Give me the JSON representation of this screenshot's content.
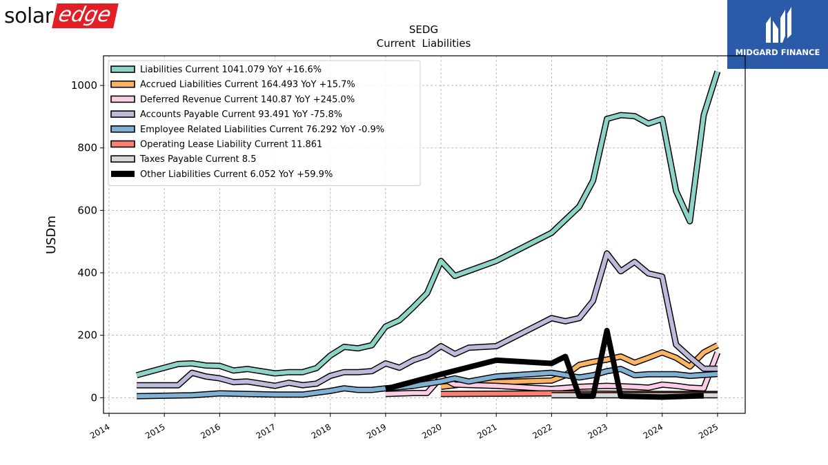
{
  "brand_left": {
    "solar": "solar",
    "edge": "edge",
    "accent": "#e21f26"
  },
  "brand_right": {
    "text": "MIDGARD FINANCE",
    "bg": "#2b5aa8"
  },
  "chart_data": {
    "type": "line",
    "title": "SEDG",
    "subtitle": "Current  Liabilities",
    "ylabel": "USDm",
    "xlabel": "",
    "xlim": [
      2013.9,
      2025.5
    ],
    "ylim": [
      -50,
      1095
    ],
    "xticks": [
      2014,
      2015,
      2016,
      2017,
      2018,
      2019,
      2020,
      2021,
      2022,
      2023,
      2024,
      2025
    ],
    "yticks": [
      0,
      200,
      400,
      600,
      800,
      1000
    ],
    "grid": true,
    "legend_position": "top-left",
    "series": [
      {
        "name": "Liabilities Current  1041.079 YoY +16.6%",
        "color": "#8dd3c7",
        "width": 6,
        "points": [
          [
            2014.5,
            72
          ],
          [
            2015.25,
            108
          ],
          [
            2015.5,
            110
          ],
          [
            2015.75,
            103
          ],
          [
            2016.0,
            102
          ],
          [
            2016.25,
            87
          ],
          [
            2016.5,
            92
          ],
          [
            2016.75,
            85
          ],
          [
            2017.0,
            78
          ],
          [
            2017.25,
            82
          ],
          [
            2017.5,
            82
          ],
          [
            2017.75,
            95
          ],
          [
            2018.0,
            135
          ],
          [
            2018.25,
            163
          ],
          [
            2018.5,
            158
          ],
          [
            2018.75,
            168
          ],
          [
            2019.0,
            228
          ],
          [
            2019.25,
            248
          ],
          [
            2019.5,
            290
          ],
          [
            2019.75,
            335
          ],
          [
            2020.0,
            438
          ],
          [
            2020.25,
            390
          ],
          [
            2021.0,
            438
          ],
          [
            2022.0,
            528
          ],
          [
            2022.5,
            612
          ],
          [
            2022.75,
            695
          ],
          [
            2023.0,
            893
          ],
          [
            2023.25,
            905
          ],
          [
            2023.5,
            902
          ],
          [
            2023.75,
            878
          ],
          [
            2024.0,
            893
          ],
          [
            2024.25,
            662
          ],
          [
            2024.5,
            565
          ],
          [
            2024.75,
            905
          ],
          [
            2025.0,
            1045
          ]
        ]
      },
      {
        "name": "Accrued Liabilities Current  164.493 YoY +15.7%",
        "color": "#fdb462",
        "width": 6,
        "points": [
          [
            2020.0,
            35
          ],
          [
            2020.5,
            45
          ],
          [
            2021.0,
            50
          ],
          [
            2022.0,
            55
          ],
          [
            2022.25,
            72
          ],
          [
            2022.5,
            105
          ],
          [
            2022.75,
            115
          ],
          [
            2023.0,
            122
          ],
          [
            2023.25,
            132
          ],
          [
            2023.5,
            112
          ],
          [
            2023.75,
            128
          ],
          [
            2024.0,
            145
          ],
          [
            2024.25,
            128
          ],
          [
            2024.5,
            100
          ],
          [
            2024.75,
            145
          ],
          [
            2025.0,
            168
          ]
        ]
      },
      {
        "name": "Deferred Revenue Current  140.87 YoY +245.0%",
        "color": "#fccde5",
        "width": 6,
        "points": [
          [
            2019.0,
            12
          ],
          [
            2019.5,
            15
          ],
          [
            2019.75,
            15
          ],
          [
            2020.0,
            65
          ],
          [
            2020.25,
            42
          ],
          [
            2021.0,
            38
          ],
          [
            2022.0,
            28
          ],
          [
            2022.5,
            35
          ],
          [
            2023.0,
            38
          ],
          [
            2023.5,
            35
          ],
          [
            2023.75,
            32
          ],
          [
            2024.0,
            42
          ],
          [
            2024.25,
            38
          ],
          [
            2024.5,
            32
          ],
          [
            2024.75,
            30
          ],
          [
            2025.0,
            145
          ]
        ]
      },
      {
        "name": "Accounts Payable Current  93.491 YoY -75.8%",
        "color": "#bebada",
        "width": 6,
        "points": [
          [
            2014.5,
            40
          ],
          [
            2015.25,
            40
          ],
          [
            2015.5,
            80
          ],
          [
            2015.75,
            68
          ],
          [
            2016.0,
            62
          ],
          [
            2016.25,
            50
          ],
          [
            2016.5,
            52
          ],
          [
            2016.75,
            45
          ],
          [
            2017.0,
            38
          ],
          [
            2017.25,
            48
          ],
          [
            2017.5,
            40
          ],
          [
            2017.75,
            45
          ],
          [
            2018.0,
            70
          ],
          [
            2018.25,
            82
          ],
          [
            2018.5,
            82
          ],
          [
            2018.75,
            85
          ],
          [
            2019.0,
            110
          ],
          [
            2019.25,
            96
          ],
          [
            2019.5,
            120
          ],
          [
            2019.75,
            135
          ],
          [
            2020.0,
            165
          ],
          [
            2020.25,
            140
          ],
          [
            2020.5,
            160
          ],
          [
            2021.0,
            165
          ],
          [
            2022.0,
            255
          ],
          [
            2022.25,
            245
          ],
          [
            2022.5,
            255
          ],
          [
            2022.75,
            310
          ],
          [
            2023.0,
            462
          ],
          [
            2023.25,
            405
          ],
          [
            2023.5,
            435
          ],
          [
            2023.75,
            398
          ],
          [
            2024.0,
            388
          ],
          [
            2024.25,
            170
          ],
          [
            2024.5,
            130
          ],
          [
            2024.75,
            93
          ],
          [
            2025.0,
            93
          ]
        ]
      },
      {
        "name": "Employee Related Liabilities Current  76.292 YoY -0.9%",
        "color": "#80b1d3",
        "width": 6,
        "points": [
          [
            2014.5,
            5
          ],
          [
            2015.5,
            8
          ],
          [
            2016.0,
            14
          ],
          [
            2016.5,
            12
          ],
          [
            2017.0,
            10
          ],
          [
            2017.5,
            10
          ],
          [
            2018.0,
            22
          ],
          [
            2018.25,
            30
          ],
          [
            2018.5,
            25
          ],
          [
            2018.75,
            25
          ],
          [
            2019.0,
            30
          ],
          [
            2019.5,
            38
          ],
          [
            2020.0,
            52
          ],
          [
            2020.25,
            62
          ],
          [
            2020.5,
            52
          ],
          [
            2021.0,
            68
          ],
          [
            2022.0,
            80
          ],
          [
            2022.5,
            65
          ],
          [
            2022.75,
            72
          ],
          [
            2023.0,
            85
          ],
          [
            2023.25,
            92
          ],
          [
            2023.5,
            72
          ],
          [
            2023.75,
            75
          ],
          [
            2024.0,
            75
          ],
          [
            2024.25,
            75
          ],
          [
            2024.5,
            70
          ],
          [
            2025.0,
            76
          ]
        ]
      },
      {
        "name": "Operating Lease Liability Current  11.861",
        "color": "#fb8072",
        "width": 6,
        "points": [
          [
            2020.0,
            12
          ],
          [
            2022.0,
            14
          ],
          [
            2024.0,
            12
          ],
          [
            2025.0,
            12
          ]
        ]
      },
      {
        "name": "Taxes Payable Current  8.5",
        "color": "#d9d9d9",
        "width": 6,
        "points": [
          [
            2022.0,
            8
          ],
          [
            2023.0,
            8
          ],
          [
            2024.0,
            8
          ],
          [
            2025.0,
            8
          ]
        ]
      },
      {
        "name": "Other Liabilities Current  6.052 YoY +59.9%",
        "color": "#000000",
        "width": 8,
        "points": [
          [
            2019.0,
            28
          ],
          [
            2020.0,
            75
          ],
          [
            2021.0,
            120
          ],
          [
            2022.0,
            110
          ],
          [
            2022.25,
            132
          ],
          [
            2022.5,
            5
          ],
          [
            2022.75,
            5
          ],
          [
            2023.0,
            215
          ],
          [
            2023.25,
            5
          ],
          [
            2024.0,
            2
          ],
          [
            2024.5,
            5
          ],
          [
            2024.75,
            6
          ]
        ]
      }
    ]
  }
}
